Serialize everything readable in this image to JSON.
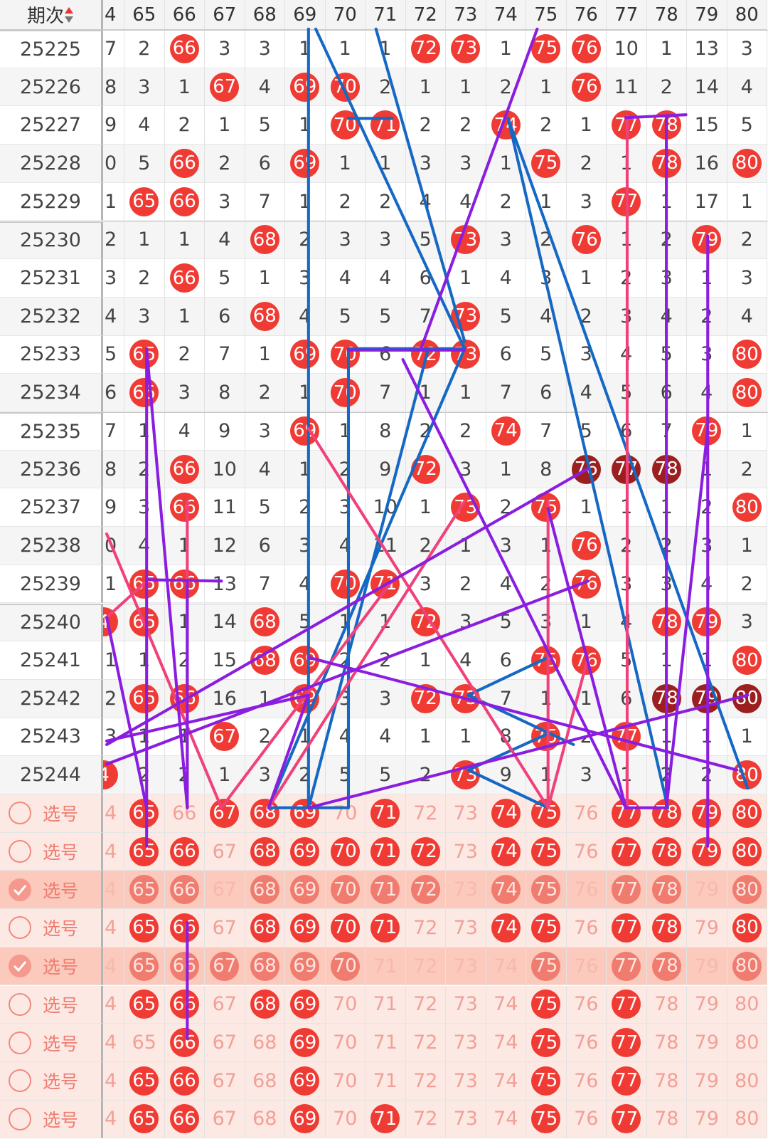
{
  "header": {
    "period": "期次",
    "columns": [
      "4",
      "65",
      "66",
      "67",
      "68",
      "69",
      "70",
      "71",
      "72",
      "73",
      "74",
      "75",
      "76",
      "77",
      "78",
      "79",
      "80"
    ]
  },
  "rows": [
    {
      "period": "25225",
      "cells": [
        "7",
        "2",
        {
          "ball": "66"
        },
        "3",
        "3",
        "1",
        "1",
        "1",
        {
          "ball": "72"
        },
        {
          "ball": "73"
        },
        "1",
        {
          "ball": "75"
        },
        {
          "ball": "76"
        },
        "10",
        "1",
        "13",
        "3"
      ]
    },
    {
      "period": "25226",
      "cells": [
        "8",
        "3",
        "1",
        {
          "ball": "67"
        },
        "4",
        {
          "ball": "69"
        },
        {
          "ball": "70"
        },
        "2",
        "1",
        "1",
        "2",
        "1",
        {
          "ball": "76"
        },
        "11",
        "2",
        "14",
        "4"
      ]
    },
    {
      "period": "25227",
      "cells": [
        "9",
        "4",
        "2",
        "1",
        "5",
        "1",
        {
          "ball": "70"
        },
        {
          "ball": "71"
        },
        "2",
        "2",
        {
          "ball": "74"
        },
        "2",
        "1",
        {
          "ball": "77"
        },
        {
          "ball": "78"
        },
        "15",
        "5"
      ]
    },
    {
      "period": "25228",
      "cells": [
        "0",
        "5",
        {
          "ball": "66"
        },
        "2",
        "6",
        {
          "ball": "69"
        },
        "1",
        "1",
        "3",
        "3",
        "1",
        {
          "ball": "75"
        },
        "2",
        "1",
        {
          "ball": "78"
        },
        "16",
        {
          "ball": "80"
        }
      ]
    },
    {
      "period": "25229",
      "cells": [
        "1",
        {
          "ball": "65"
        },
        {
          "ball": "66"
        },
        "3",
        "7",
        "1",
        "2",
        "2",
        "4",
        "4",
        "2",
        "1",
        "3",
        {
          "ball": "77"
        },
        "1",
        "17",
        "1"
      ]
    },
    {
      "period": "25230",
      "cells": [
        "2",
        "1",
        "1",
        "4",
        {
          "ball": "68"
        },
        "2",
        "3",
        "3",
        "5",
        {
          "ball": "73"
        },
        "3",
        "2",
        {
          "ball": "76"
        },
        "1",
        "2",
        {
          "ball": "79"
        },
        "2"
      ]
    },
    {
      "period": "25231",
      "cells": [
        "3",
        "2",
        {
          "ball": "66"
        },
        "5",
        "1",
        "3",
        "4",
        "4",
        "6",
        "1",
        "4",
        "3",
        "1",
        "2",
        "3",
        "1",
        "3"
      ]
    },
    {
      "period": "25232",
      "cells": [
        "4",
        "3",
        "1",
        "6",
        {
          "ball": "68"
        },
        "4",
        "5",
        "5",
        "7",
        {
          "ball": "73"
        },
        "5",
        "4",
        "2",
        "3",
        "4",
        "2",
        "4"
      ]
    },
    {
      "period": "25233",
      "cells": [
        "5",
        {
          "ball": "65"
        },
        "2",
        "7",
        "1",
        {
          "ball": "69"
        },
        {
          "ball": "70"
        },
        "6",
        {
          "ball": "72"
        },
        {
          "ball": "73"
        },
        "6",
        "5",
        "3",
        "4",
        "5",
        "3",
        {
          "ball": "80"
        }
      ]
    },
    {
      "period": "25234",
      "cells": [
        "6",
        {
          "ball": "65"
        },
        "3",
        "8",
        "2",
        "1",
        {
          "ball": "70"
        },
        "7",
        "1",
        "1",
        "7",
        "6",
        "4",
        "5",
        "6",
        "4",
        {
          "ball": "80"
        }
      ]
    },
    {
      "period": "25235",
      "cells": [
        "7",
        "1",
        "4",
        "9",
        "3",
        {
          "ball": "69"
        },
        "1",
        "8",
        "2",
        "2",
        {
          "ball": "74"
        },
        "7",
        "5",
        "6",
        "7",
        {
          "ball": "79"
        },
        "1"
      ]
    },
    {
      "period": "25236",
      "cells": [
        "8",
        "2",
        {
          "ball": "66"
        },
        "10",
        "4",
        "1",
        "2",
        "9",
        {
          "ball": "72"
        },
        "3",
        "1",
        "8",
        {
          "ball": "76",
          "dark": true
        },
        {
          "ball": "77",
          "dark": true
        },
        {
          "ball": "78",
          "dark": true
        },
        "1",
        "2"
      ]
    },
    {
      "period": "25237",
      "cells": [
        "9",
        "3",
        {
          "ball": "66"
        },
        "11",
        "5",
        "2",
        "3",
        "10",
        "1",
        {
          "ball": "73"
        },
        "2",
        {
          "ball": "75"
        },
        "1",
        "1",
        "1",
        "2",
        {
          "ball": "80"
        }
      ]
    },
    {
      "period": "25238",
      "cells": [
        "0",
        "4",
        "1",
        "12",
        "6",
        "3",
        "4",
        "11",
        "2",
        "1",
        "3",
        "1",
        {
          "ball": "76"
        },
        "2",
        "2",
        "3",
        "1"
      ]
    },
    {
      "period": "25239",
      "cells": [
        "1",
        {
          "ball": "65"
        },
        {
          "ball": "66"
        },
        "13",
        "7",
        "4",
        {
          "ball": "70"
        },
        {
          "ball": "71"
        },
        "3",
        "2",
        "4",
        "2",
        {
          "ball": "76"
        },
        "3",
        "3",
        "4",
        "2"
      ]
    },
    {
      "period": "25240",
      "cells": [
        {
          "ball": "4"
        },
        {
          "ball": "65"
        },
        "1",
        "14",
        {
          "ball": "68"
        },
        "5",
        "1",
        "1",
        {
          "ball": "72"
        },
        "3",
        "5",
        "3",
        "1",
        "4",
        {
          "ball": "78"
        },
        {
          "ball": "79"
        },
        "3"
      ]
    },
    {
      "period": "25241",
      "cells": [
        "1",
        "1",
        "2",
        "15",
        {
          "ball": "68"
        },
        {
          "ball": "69"
        },
        "2",
        "2",
        "1",
        "4",
        "6",
        {
          "ball": "75"
        },
        {
          "ball": "76"
        },
        "5",
        "1",
        "1",
        {
          "ball": "80"
        }
      ]
    },
    {
      "period": "25242",
      "cells": [
        "2",
        {
          "ball": "65"
        },
        {
          "ball": "66"
        },
        "16",
        "1",
        {
          "ball": "69"
        },
        "3",
        "3",
        {
          "ball": "72"
        },
        {
          "ball": "73"
        },
        "7",
        "1",
        "1",
        "6",
        {
          "ball": "78",
          "dark": true
        },
        {
          "ball": "79",
          "dark": true
        },
        {
          "ball": "80",
          "dark": true
        }
      ]
    },
    {
      "period": "25243",
      "cells": [
        "3",
        "1",
        "1",
        {
          "ball": "67"
        },
        "2",
        "1",
        "4",
        "4",
        "1",
        "1",
        "8",
        {
          "ball": "75"
        },
        "2",
        {
          "ball": "77"
        },
        "1",
        "1",
        "1"
      ]
    },
    {
      "period": "25244",
      "cells": [
        {
          "ball": "4"
        },
        "2",
        "2",
        "1",
        "3",
        "2",
        "5",
        "5",
        "2",
        {
          "ball": "73"
        },
        "9",
        "1",
        "3",
        "1",
        "2",
        "2",
        {
          "ball": "80"
        }
      ]
    }
  ],
  "select_rows": [
    {
      "checked": false,
      "label": "选号",
      "cells": [
        "4",
        {
          "ball": "65"
        },
        "66",
        {
          "ball": "67"
        },
        {
          "ball": "68"
        },
        {
          "ball": "69"
        },
        "70",
        {
          "ball": "71"
        },
        "72",
        "73",
        {
          "ball": "74"
        },
        {
          "ball": "75"
        },
        "76",
        {
          "ball": "77"
        },
        {
          "ball": "78"
        },
        {
          "ball": "79"
        },
        {
          "ball": "80"
        }
      ]
    },
    {
      "checked": false,
      "label": "选号",
      "cells": [
        "4",
        {
          "ball": "65"
        },
        {
          "ball": "66"
        },
        "67",
        {
          "ball": "68"
        },
        {
          "ball": "69"
        },
        {
          "ball": "70"
        },
        {
          "ball": "71"
        },
        {
          "ball": "72"
        },
        "73",
        {
          "ball": "74"
        },
        {
          "ball": "75"
        },
        "76",
        {
          "ball": "77"
        },
        {
          "ball": "78"
        },
        {
          "ball": "79"
        },
        {
          "ball": "80"
        }
      ]
    },
    {
      "checked": true,
      "label": "选号",
      "cells": [
        "4",
        {
          "ball": "65"
        },
        {
          "ball": "66"
        },
        "67",
        {
          "ball": "68"
        },
        {
          "ball": "69"
        },
        {
          "ball": "70"
        },
        {
          "ball": "71"
        },
        {
          "ball": "72"
        },
        "73",
        {
          "ball": "74"
        },
        {
          "ball": "75"
        },
        "76",
        {
          "ball": "77"
        },
        {
          "ball": "78"
        },
        "79",
        {
          "ball": "80"
        }
      ]
    },
    {
      "checked": false,
      "label": "选号",
      "cells": [
        "4",
        {
          "ball": "65"
        },
        {
          "ball": "66"
        },
        "67",
        {
          "ball": "68"
        },
        {
          "ball": "69"
        },
        {
          "ball": "70"
        },
        {
          "ball": "71"
        },
        "72",
        "73",
        {
          "ball": "74"
        },
        {
          "ball": "75"
        },
        "76",
        {
          "ball": "77"
        },
        {
          "ball": "78"
        },
        "79",
        {
          "ball": "80"
        }
      ]
    },
    {
      "checked": true,
      "label": "选号",
      "cells": [
        "4",
        {
          "ball": "65"
        },
        {
          "ball": "66"
        },
        {
          "ball": "67"
        },
        {
          "ball": "68"
        },
        {
          "ball": "69"
        },
        {
          "ball": "70"
        },
        "71",
        "72",
        "73",
        "74",
        {
          "ball": "75"
        },
        "76",
        {
          "ball": "77"
        },
        {
          "ball": "78"
        },
        "79",
        {
          "ball": "80"
        }
      ]
    },
    {
      "checked": false,
      "label": "选号",
      "cells": [
        "4",
        {
          "ball": "65"
        },
        {
          "ball": "66"
        },
        "67",
        {
          "ball": "68"
        },
        {
          "ball": "69"
        },
        "70",
        "71",
        "72",
        "73",
        "74",
        {
          "ball": "75"
        },
        "76",
        {
          "ball": "77"
        },
        "78",
        "79",
        "80"
      ]
    },
    {
      "checked": false,
      "label": "选号",
      "cells": [
        "4",
        "65",
        {
          "ball": "66"
        },
        "67",
        "68",
        {
          "ball": "69"
        },
        "70",
        "71",
        "72",
        "73",
        "74",
        {
          "ball": "75"
        },
        "76",
        {
          "ball": "77"
        },
        "78",
        "79",
        "80"
      ]
    },
    {
      "checked": false,
      "label": "选号",
      "cells": [
        "4",
        {
          "ball": "65"
        },
        {
          "ball": "66"
        },
        "67",
        "68",
        {
          "ball": "69"
        },
        "70",
        "71",
        "72",
        "73",
        "74",
        {
          "ball": "75"
        },
        "76",
        {
          "ball": "77"
        },
        "78",
        "79",
        "80"
      ]
    },
    {
      "checked": false,
      "label": "选号",
      "cells": [
        "4",
        {
          "ball": "65"
        },
        {
          "ball": "66"
        },
        "67",
        "68",
        {
          "ball": "69"
        },
        "70",
        {
          "ball": "71"
        },
        "72",
        "73",
        "74",
        {
          "ball": "75"
        },
        "76",
        {
          "ball": "77"
        },
        "78",
        "79",
        "80"
      ]
    }
  ]
}
